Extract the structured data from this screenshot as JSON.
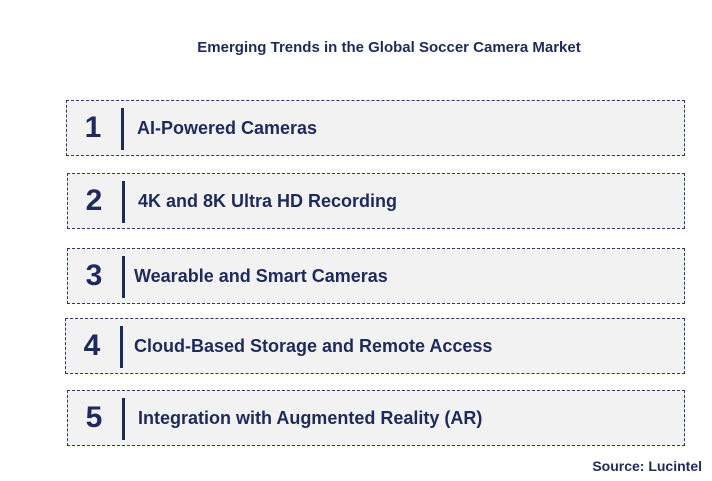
{
  "title": "Emerging Trends in the Global Soccer Camera Market",
  "trends": [
    {
      "number": "1",
      "label": "AI-Powered Cameras"
    },
    {
      "number": "2",
      "label": "4K and 8K Ultra HD Recording"
    },
    {
      "number": "3",
      "label": "Wearable and Smart Cameras"
    },
    {
      "number": "4",
      "label": "Cloud-Based Storage and Remote Access"
    },
    {
      "number": "5",
      "label": "Integration with Augmented Reality (AR)"
    }
  ],
  "source": "Source: Lucintel"
}
